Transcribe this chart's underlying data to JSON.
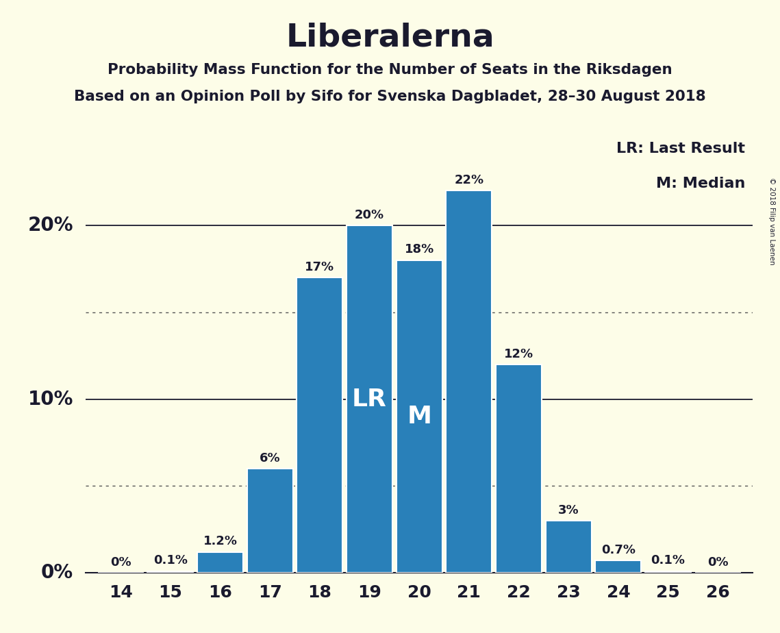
{
  "title": "Liberalerna",
  "subtitle1": "Probability Mass Function for the Number of Seats in the Riksdagen",
  "subtitle2": "Based on an Opinion Poll by Sifo for Svenska Dagbladet, 28–30 August 2018",
  "copyright": "© 2018 Filip van Laenen",
  "categories": [
    14,
    15,
    16,
    17,
    18,
    19,
    20,
    21,
    22,
    23,
    24,
    25,
    26
  ],
  "values": [
    0.0,
    0.1,
    1.2,
    6.0,
    17.0,
    20.0,
    18.0,
    22.0,
    12.0,
    3.0,
    0.7,
    0.1,
    0.0
  ],
  "labels": [
    "0%",
    "0.1%",
    "1.2%",
    "6%",
    "17%",
    "20%",
    "18%",
    "22%",
    "12%",
    "3%",
    "0.7%",
    "0.1%",
    "0%"
  ],
  "bar_color": "#2980B9",
  "background_color": "#FDFDE8",
  "text_color": "#1a1a2e",
  "lr_seat": 19,
  "median_seat": 20,
  "lr_label": "LR",
  "median_label": "M",
  "legend_lr": "LR: Last Result",
  "legend_m": "M: Median",
  "ytick_vals": [
    0,
    10,
    20
  ],
  "ytick_labels": [
    "0%",
    "10%",
    "20%"
  ],
  "dotted_lines": [
    5,
    15
  ],
  "ylim": [
    0,
    25.5
  ],
  "solid_lines": [
    0,
    10,
    20
  ]
}
